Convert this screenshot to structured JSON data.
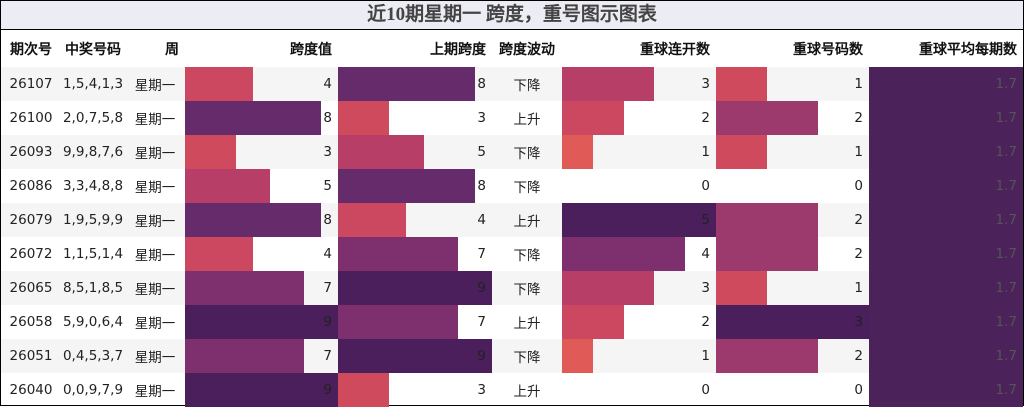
{
  "title": "近10期星期一 跨度，重号图示图表",
  "columns": {
    "period": "期次号",
    "numbers": "中奖号码",
    "weekday": "周",
    "span": "跨度值",
    "prev_span": "上期跨度",
    "trend": "跨度波动",
    "repeat_streak": "重球连开数",
    "repeat_count": "重球号码数",
    "repeat_avg": "重球平均每期数"
  },
  "colors": {
    "v0": "#ffffff",
    "v1": "#e8866a",
    "v2": "#e05a58",
    "v3": "#d04a5e",
    "v4": "#cc4760",
    "v5": "#b73e67",
    "v6": "#9c3a6e",
    "v7": "#7e2f6e",
    "v8": "#662b6a",
    "v9": "#4a1f5c",
    "avg": "#4b2259"
  },
  "chart_data": {
    "type": "table",
    "title": "近10期星期一 跨度，重号图示图表",
    "rows": [
      {
        "period": "26107",
        "numbers": "1,5,4,1,3",
        "weekday": "星期一",
        "span": 4,
        "prev_span": 8,
        "trend": "下降",
        "repeat_streak": 3,
        "repeat_count": 1,
        "repeat_avg": "1.7"
      },
      {
        "period": "26100",
        "numbers": "2,0,7,5,8",
        "weekday": "星期一",
        "span": 8,
        "prev_span": 3,
        "trend": "上升",
        "repeat_streak": 2,
        "repeat_count": 2,
        "repeat_avg": "1.7"
      },
      {
        "period": "26093",
        "numbers": "9,9,8,7,6",
        "weekday": "星期一",
        "span": 3,
        "prev_span": 5,
        "trend": "下降",
        "repeat_streak": 1,
        "repeat_count": 1,
        "repeat_avg": "1.7"
      },
      {
        "period": "26086",
        "numbers": "3,3,4,8,8",
        "weekday": "星期一",
        "span": 5,
        "prev_span": 8,
        "trend": "下降",
        "repeat_streak": 0,
        "repeat_count": 0,
        "repeat_avg": "1.7"
      },
      {
        "period": "26079",
        "numbers": "1,9,5,9,9",
        "weekday": "星期一",
        "span": 8,
        "prev_span": 4,
        "trend": "上升",
        "repeat_streak": 5,
        "repeat_count": 2,
        "repeat_avg": "1.7"
      },
      {
        "period": "26072",
        "numbers": "1,1,5,1,4",
        "weekday": "星期一",
        "span": 4,
        "prev_span": 7,
        "trend": "下降",
        "repeat_streak": 4,
        "repeat_count": 2,
        "repeat_avg": "1.7"
      },
      {
        "period": "26065",
        "numbers": "8,5,1,8,5",
        "weekday": "星期一",
        "span": 7,
        "prev_span": 9,
        "trend": "下降",
        "repeat_streak": 3,
        "repeat_count": 1,
        "repeat_avg": "1.7"
      },
      {
        "period": "26058",
        "numbers": "5,9,0,6,4",
        "weekday": "星期一",
        "span": 9,
        "prev_span": 7,
        "trend": "上升",
        "repeat_streak": 2,
        "repeat_count": 3,
        "repeat_avg": "1.7"
      },
      {
        "period": "26051",
        "numbers": "0,4,5,3,7",
        "weekday": "星期一",
        "span": 7,
        "prev_span": 9,
        "trend": "下降",
        "repeat_streak": 1,
        "repeat_count": 2,
        "repeat_avg": "1.7"
      },
      {
        "period": "26040",
        "numbers": "0,0,9,7,9",
        "weekday": "星期一",
        "span": 9,
        "prev_span": 3,
        "trend": "上升",
        "repeat_streak": 0,
        "repeat_count": 0,
        "repeat_avg": "1.7"
      }
    ],
    "scales": {
      "span_max": 9,
      "prev_span_max": 9,
      "repeat_streak_max": 5,
      "repeat_count_max": 3
    }
  }
}
